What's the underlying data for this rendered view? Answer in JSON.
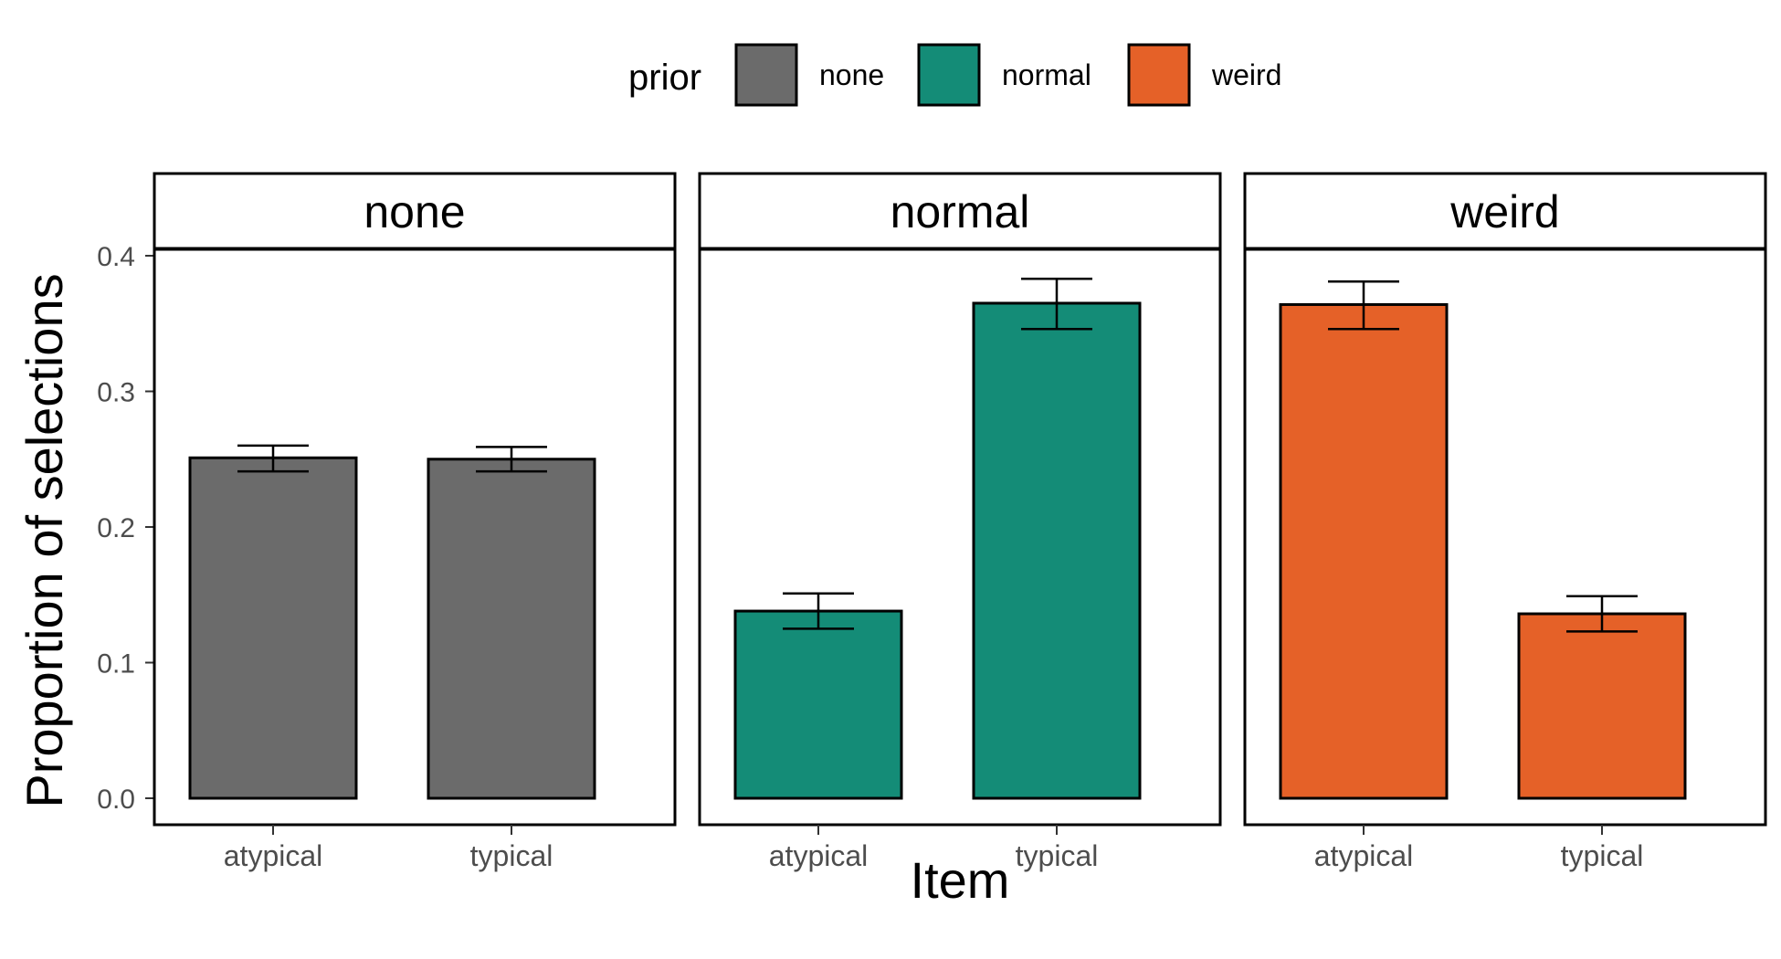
{
  "chart_data": {
    "type": "bar",
    "xlabel": "Item",
    "ylabel": "Proportion of selections",
    "ylim": [
      0,
      0.4
    ],
    "yticks": [
      "0.0",
      "0.1",
      "0.2",
      "0.3",
      "0.4"
    ],
    "ytick_values": [
      0,
      0.1,
      0.2,
      0.3,
      0.4
    ],
    "grid": false,
    "legend": {
      "title": "prior",
      "placement": "top",
      "entries": [
        {
          "label": "none",
          "color": "#6b6b6b"
        },
        {
          "label": "normal",
          "color": "#148c77"
        },
        {
          "label": "weird",
          "color": "#e56128"
        }
      ]
    },
    "categories": [
      "atypical",
      "typical"
    ],
    "facets": [
      {
        "title": "none",
        "color": "#6b6b6b",
        "values": [
          0.251,
          0.25
        ],
        "err_low": [
          0.241,
          0.241
        ],
        "err_high": [
          0.26,
          0.259
        ]
      },
      {
        "title": "normal",
        "color": "#148c77",
        "values": [
          0.138,
          0.365
        ],
        "err_low": [
          0.125,
          0.346
        ],
        "err_high": [
          0.151,
          0.383
        ]
      },
      {
        "title": "weird",
        "color": "#e56128",
        "values": [
          0.364,
          0.136
        ],
        "err_low": [
          0.346,
          0.123
        ],
        "err_high": [
          0.381,
          0.149
        ]
      }
    ]
  }
}
